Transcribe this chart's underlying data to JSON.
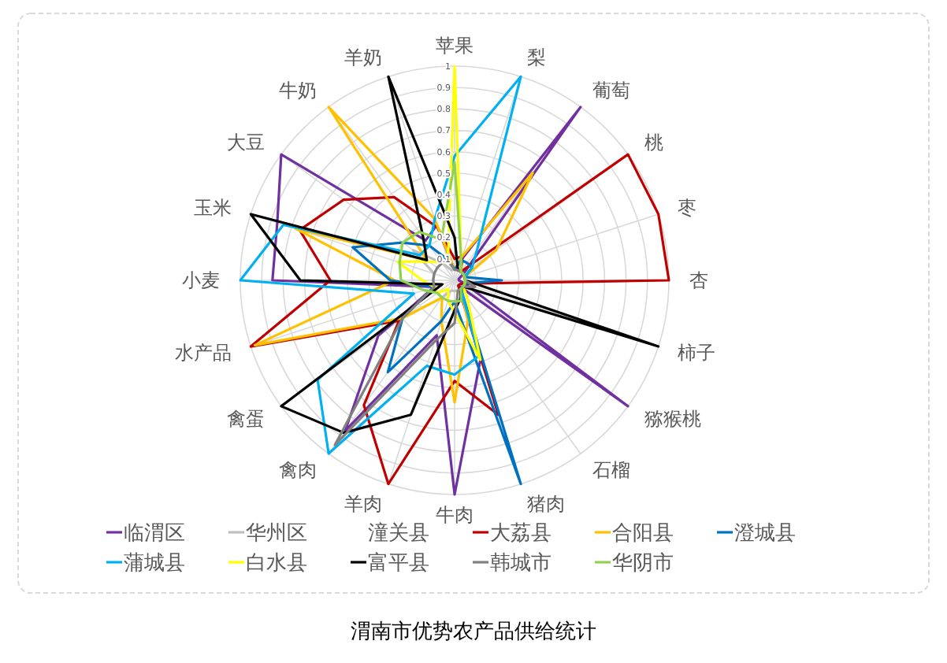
{
  "chart_data": {
    "type": "radar",
    "title": "渭南市优势农产品供给统计",
    "categories": [
      "苹果",
      "梨",
      "葡萄",
      "桃",
      "枣",
      "杏",
      "柿子",
      "猕猴桃",
      "石榴",
      "猪肉",
      "牛肉",
      "羊肉",
      "禽肉",
      "禽蛋",
      "水产品",
      "小麦",
      "玉米",
      "大豆",
      "牛奶",
      "羊奶"
    ],
    "ylim": [
      0,
      1
    ],
    "yticks": [
      0.1,
      0.2,
      0.3,
      0.4,
      0.5,
      0.6,
      0.7,
      0.8,
      0.9,
      1
    ],
    "grid": true,
    "legend": "bottom",
    "series": [
      {
        "name": "临渭区",
        "color": "#7030a0",
        "values": [
          0.05,
          0.1,
          1,
          0.05,
          0.02,
          0.02,
          0.05,
          1,
          0.03,
          0.39,
          1,
          0.27,
          0.87,
          0.44,
          0.1,
          0.85,
          0.87,
          1,
          0.23,
          0.27
        ]
      },
      {
        "name": "华州区",
        "color": "#bfbfbf",
        "values": [
          0.05,
          0.05,
          0.05,
          0.05,
          0.05,
          0.05,
          0.05,
          0.05,
          0.05,
          0.05,
          0.05,
          0.05,
          0.1,
          0.1,
          0.1,
          0.1,
          0.1,
          0.24,
          0.1,
          0.05
        ]
      },
      {
        "name": "潼关县",
        "color": "#ffffff",
        "values": [
          null,
          null,
          null,
          null,
          null,
          null,
          null,
          null,
          null,
          null,
          null,
          null,
          null,
          null,
          null,
          null,
          null,
          null,
          null,
          null
        ]
      },
      {
        "name": "大荔县",
        "color": "#c00000",
        "values": [
          0.1,
          0.12,
          0.05,
          1,
          1,
          1,
          0.05,
          0.03,
          0.03,
          0.66,
          0.47,
          1,
          0.72,
          0.32,
          1,
          0.58,
          0.76,
          0.64,
          0.48,
          0.26
        ]
      },
      {
        "name": "合阳县",
        "color": "#ffc000",
        "values": [
          0.05,
          0.12,
          0.62,
          0.24,
          0.05,
          0.05,
          0.05,
          0.05,
          0.05,
          0.2,
          0.57,
          0.2,
          0.1,
          0.3,
          0.98,
          0.28,
          0.78,
          0.16,
          1,
          0.3
        ]
      },
      {
        "name": "澄城县",
        "color": "#0070c0",
        "values": [
          0.05,
          0.1,
          0.1,
          0.1,
          0.05,
          0.22,
          0.05,
          0.05,
          0.05,
          1,
          0.1,
          0.2,
          0.53,
          0.3,
          0.1,
          0.3,
          0.5,
          0.3,
          0.2,
          0.1
        ]
      },
      {
        "name": "蒲城县",
        "color": "#00b0f0",
        "values": [
          0.58,
          1,
          0.18,
          0.1,
          0.05,
          0.05,
          0.05,
          0.05,
          0.05,
          0.37,
          0.44,
          0.42,
          1,
          0.79,
          0.2,
          1,
          0.84,
          0.2,
          0.2,
          0.3
        ]
      },
      {
        "name": "白水县",
        "color": "#ffff00",
        "values": [
          1,
          0.1,
          0.05,
          0.05,
          0.05,
          0.05,
          0.05,
          0.05,
          0.1,
          0.39,
          0.15,
          0.1,
          0.05,
          0.1,
          0.1,
          0.15,
          0.28,
          0.15,
          0.1,
          0.1
        ]
      },
      {
        "name": "富平县",
        "color": "#000000",
        "values": [
          0.2,
          0.05,
          0.05,
          0.05,
          0.05,
          0.05,
          1,
          0.05,
          0.05,
          0.09,
          0.14,
          0.66,
          0.88,
          1,
          0.06,
          0.72,
          1,
          0.16,
          0.25,
          1
        ]
      },
      {
        "name": "韩城市",
        "color": "#808080",
        "values": [
          0.05,
          0.05,
          0.05,
          0.05,
          0.05,
          0.05,
          0.1,
          0.05,
          0.05,
          0.05,
          0.2,
          0.3,
          0.95,
          0.3,
          0.1,
          0.1,
          0.1,
          0.1,
          0.1,
          0.1
        ]
      },
      {
        "name": "华阴市",
        "color": "#92d050",
        "values": [
          0.55,
          0.1,
          0.05,
          0.05,
          0.05,
          0.05,
          0.05,
          0.05,
          0.05,
          0.1,
          0.1,
          0.1,
          0.1,
          0.1,
          0.15,
          0.25,
          0.27,
          0.3,
          0.28,
          0.2
        ]
      }
    ]
  }
}
